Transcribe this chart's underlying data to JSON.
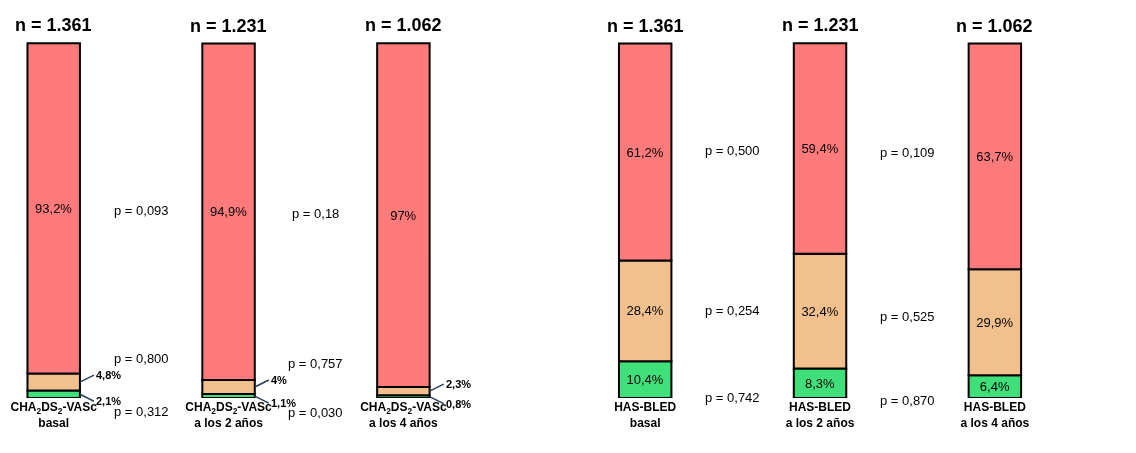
{
  "chart_data": [
    {
      "type": "bar",
      "stacked": true,
      "tick_labels": "x",
      "ylim": [
        0,
        101
      ],
      "categories": [
        "CHA$_{2}$DS$_{2}$-VASc\nbasal",
        "CHA$_{2}$DS$_{2}$-VASc\na los 2 años",
        "CHA$_{2}$DS$_{2}$-VASc\na los 4 años"
      ],
      "series": [
        {
          "color": "#3fe07a",
          "values": [
            2.1,
            1.1,
            0.8
          ],
          "value_labels": [
            "2,1%",
            "1,1%",
            "0,8%"
          ]
        },
        {
          "color": "#f2c08c",
          "values": [
            4.8,
            4,
            2.3
          ],
          "value_labels": [
            "4,8%",
            "4%",
            "2,3%"
          ]
        },
        {
          "color": "#ff7b7b",
          "values": [
            93.2,
            94.9,
            97
          ],
          "value_labels": [
            "93,2%",
            "94,9%",
            "97%"
          ]
        }
      ],
      "annotations": [
        "n = 1.361",
        "n = 1.231",
        "n = 1.062",
        "p = 0,093",
        "p = 0,800",
        "p = 0,312",
        "p = 0,18",
        "p = 0,757",
        "p = 0,030"
      ]
    },
    {
      "type": "bar",
      "stacked": true,
      "tick_labels": "x",
      "ylim": [
        0,
        101
      ],
      "categories": [
        "HAS-BLED\nbasal",
        "HAS-BLED\na los 2 años",
        "HAS-BLED\na los 4 años"
      ],
      "series": [
        {
          "color": "#3fe07a",
          "values": [
            10.4,
            8.3,
            6.4
          ],
          "value_labels": [
            "10,4%",
            "8,3%",
            "6,4%"
          ]
        },
        {
          "color": "#f2c08c",
          "values": [
            28.4,
            32.4,
            29.9
          ],
          "value_labels": [
            "28,4%",
            "32,4%",
            "29,9%"
          ]
        },
        {
          "color": "#ff7b7b",
          "values": [
            61.2,
            59.4,
            63.7
          ],
          "value_labels": [
            "61,2%",
            "59,4%",
            "63,7%"
          ]
        }
      ],
      "annotations": [
        "n = 1.361",
        "n = 1.231",
        "n = 1.062",
        "p = 0,500",
        "p = 0,254",
        "p = 0,742",
        "p = 0,109",
        "p = 0,525",
        "p = 0,870"
      ]
    }
  ]
}
